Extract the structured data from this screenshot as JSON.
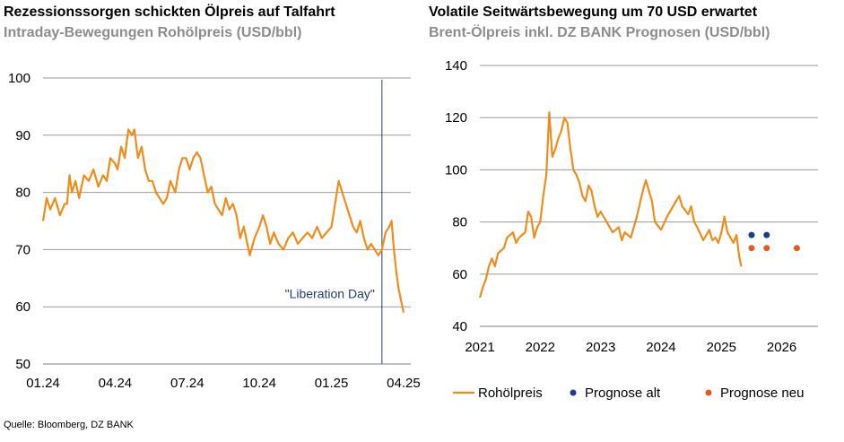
{
  "left_panel": {
    "title": "Rezessionssorgen schickten Ölpreis auf Talfahrt",
    "subtitle": "Intraday-Bewegungen Rohölpreis (USD/bbl)"
  },
  "right_panel": {
    "title": "Volatile Seitwärtsbewegung um 70 USD erwartet",
    "subtitle": "Brent-Ölpreis inkl. DZ BANK Prognosen (USD/bbl)"
  },
  "source": "Quelle: Bloomberg, DZ BANK",
  "colors": {
    "oil": "#ee8d1a",
    "alt": "#1f3c88",
    "neu": "#e05a2b",
    "grid": "#999999",
    "marker_line": "#1f3d7a"
  },
  "chart_data": [
    {
      "type": "line",
      "title": "Rezessionssorgen schickten Ölpreis auf Talfahrt",
      "subtitle": "Intraday-Bewegungen Rohölpreis (USD/bbl)",
      "ylim": [
        50,
        100
      ],
      "yticks": [
        50,
        60,
        70,
        80,
        90,
        100
      ],
      "xlim": [
        0,
        15.3
      ],
      "xticks": [
        {
          "x": 0,
          "label": "01.24"
        },
        {
          "x": 3,
          "label": "04.24"
        },
        {
          "x": 6,
          "label": "07.24"
        },
        {
          "x": 9,
          "label": "10.24"
        },
        {
          "x": 12,
          "label": "01.25"
        },
        {
          "x": 15,
          "label": "04.25"
        }
      ],
      "grid": true,
      "annotation": {
        "label": "\"Liberation Day\"",
        "x": 14.1
      },
      "series": [
        {
          "points": [
            [
              0.0,
              75
            ],
            [
              0.15,
              79
            ],
            [
              0.3,
              77
            ],
            [
              0.5,
              79
            ],
            [
              0.7,
              76
            ],
            [
              0.9,
              78
            ],
            [
              1.0,
              78
            ],
            [
              1.1,
              83
            ],
            [
              1.2,
              80
            ],
            [
              1.35,
              82
            ],
            [
              1.5,
              79
            ],
            [
              1.7,
              83
            ],
            [
              1.9,
              82
            ],
            [
              2.1,
              84
            ],
            [
              2.3,
              81
            ],
            [
              2.5,
              83
            ],
            [
              2.65,
              82
            ],
            [
              2.8,
              86
            ],
            [
              3.0,
              85
            ],
            [
              3.1,
              84
            ],
            [
              3.25,
              88
            ],
            [
              3.4,
              86
            ],
            [
              3.55,
              91
            ],
            [
              3.7,
              90
            ],
            [
              3.8,
              91
            ],
            [
              3.95,
              86
            ],
            [
              4.1,
              88
            ],
            [
              4.25,
              84
            ],
            [
              4.4,
              82
            ],
            [
              4.55,
              82
            ],
            [
              4.7,
              80
            ],
            [
              4.85,
              79
            ],
            [
              5.0,
              78
            ],
            [
              5.15,
              79
            ],
            [
              5.3,
              82
            ],
            [
              5.5,
              80
            ],
            [
              5.65,
              84
            ],
            [
              5.8,
              86
            ],
            [
              5.95,
              86
            ],
            [
              6.1,
              84
            ],
            [
              6.25,
              86
            ],
            [
              6.4,
              87
            ],
            [
              6.55,
              86
            ],
            [
              6.7,
              83
            ],
            [
              6.85,
              80
            ],
            [
              7.0,
              81
            ],
            [
              7.15,
              78
            ],
            [
              7.3,
              77
            ],
            [
              7.45,
              76
            ],
            [
              7.6,
              79
            ],
            [
              7.75,
              77
            ],
            [
              7.9,
              78
            ],
            [
              8.05,
              76
            ],
            [
              8.2,
              72
            ],
            [
              8.35,
              74
            ],
            [
              8.5,
              71
            ],
            [
              8.6,
              69
            ],
            [
              8.8,
              72
            ],
            [
              9.0,
              74
            ],
            [
              9.15,
              76
            ],
            [
              9.3,
              74
            ],
            [
              9.45,
              71
            ],
            [
              9.6,
              73
            ],
            [
              9.8,
              71
            ],
            [
              10.0,
              70
            ],
            [
              10.2,
              72
            ],
            [
              10.4,
              73
            ],
            [
              10.6,
              71
            ],
            [
              10.8,
              72
            ],
            [
              11.0,
              73
            ],
            [
              11.2,
              72
            ],
            [
              11.4,
              74
            ],
            [
              11.6,
              72
            ],
            [
              11.8,
              73
            ],
            [
              12.0,
              74
            ],
            [
              12.15,
              78
            ],
            [
              12.3,
              82
            ],
            [
              12.45,
              80
            ],
            [
              12.6,
              78
            ],
            [
              12.75,
              76
            ],
            [
              12.9,
              74
            ],
            [
              13.05,
              73
            ],
            [
              13.2,
              75
            ],
            [
              13.35,
              72
            ],
            [
              13.5,
              70
            ],
            [
              13.65,
              71
            ],
            [
              13.8,
              70
            ],
            [
              13.95,
              69
            ],
            [
              14.1,
              70
            ],
            [
              14.25,
              73
            ],
            [
              14.4,
              74
            ],
            [
              14.5,
              75
            ],
            [
              14.6,
              70
            ],
            [
              14.7,
              66
            ],
            [
              14.8,
              63
            ],
            [
              14.9,
              61
            ],
            [
              15.0,
              59
            ]
          ]
        }
      ]
    },
    {
      "type": "line",
      "title": "Volatile Seitwärtsbewegung um 70 USD erwartet",
      "subtitle": "Brent-Ölpreis inkl. DZ BANK Prognosen (USD/bbl)",
      "ylim": [
        40,
        140
      ],
      "yticks": [
        40,
        60,
        80,
        100,
        120,
        140
      ],
      "xlim": [
        2021,
        2026.6
      ],
      "xticks": [
        {
          "x": 2021,
          "label": "2021"
        },
        {
          "x": 2022,
          "label": "2022"
        },
        {
          "x": 2023,
          "label": "2023"
        },
        {
          "x": 2024,
          "label": "2024"
        },
        {
          "x": 2025,
          "label": "2025"
        },
        {
          "x": 2026,
          "label": "2026"
        }
      ],
      "grid": true,
      "legend_position": "bottom",
      "series": [
        {
          "name": "Rohölpreis",
          "style": "line",
          "points": [
            [
              2021.0,
              51
            ],
            [
              2021.05,
              55
            ],
            [
              2021.1,
              58
            ],
            [
              2021.15,
              63
            ],
            [
              2021.2,
              66
            ],
            [
              2021.25,
              63
            ],
            [
              2021.3,
              68
            ],
            [
              2021.4,
              70
            ],
            [
              2021.45,
              74
            ],
            [
              2021.55,
              76
            ],
            [
              2021.6,
              72
            ],
            [
              2021.65,
              74
            ],
            [
              2021.75,
              76
            ],
            [
              2021.8,
              84
            ],
            [
              2021.85,
              82
            ],
            [
              2021.9,
              74
            ],
            [
              2021.95,
              78
            ],
            [
              2022.0,
              80
            ],
            [
              2022.05,
              90
            ],
            [
              2022.1,
              98
            ],
            [
              2022.15,
              122
            ],
            [
              2022.2,
              105
            ],
            [
              2022.25,
              108
            ],
            [
              2022.3,
              112
            ],
            [
              2022.35,
              115
            ],
            [
              2022.4,
              120
            ],
            [
              2022.45,
              118
            ],
            [
              2022.5,
              108
            ],
            [
              2022.55,
              100
            ],
            [
              2022.6,
              98
            ],
            [
              2022.65,
              95
            ],
            [
              2022.7,
              90
            ],
            [
              2022.75,
              88
            ],
            [
              2022.8,
              94
            ],
            [
              2022.85,
              92
            ],
            [
              2022.9,
              86
            ],
            [
              2022.95,
              82
            ],
            [
              2023.0,
              84
            ],
            [
              2023.1,
              80
            ],
            [
              2023.2,
              76
            ],
            [
              2023.3,
              78
            ],
            [
              2023.35,
              73
            ],
            [
              2023.4,
              76
            ],
            [
              2023.5,
              74
            ],
            [
              2023.6,
              82
            ],
            [
              2023.7,
              92
            ],
            [
              2023.75,
              96
            ],
            [
              2023.8,
              92
            ],
            [
              2023.85,
              88
            ],
            [
              2023.9,
              80
            ],
            [
              2024.0,
              77
            ],
            [
              2024.1,
              82
            ],
            [
              2024.2,
              86
            ],
            [
              2024.3,
              90
            ],
            [
              2024.35,
              86
            ],
            [
              2024.45,
              83
            ],
            [
              2024.5,
              86
            ],
            [
              2024.55,
              80
            ],
            [
              2024.6,
              78
            ],
            [
              2024.7,
              73
            ],
            [
              2024.8,
              77
            ],
            [
              2024.85,
              73
            ],
            [
              2024.9,
              74
            ],
            [
              2024.95,
              72
            ],
            [
              2025.0,
              76
            ],
            [
              2025.05,
              82
            ],
            [
              2025.1,
              76
            ],
            [
              2025.2,
              72
            ],
            [
              2025.25,
              75
            ],
            [
              2025.3,
              66
            ],
            [
              2025.33,
              63
            ]
          ]
        },
        {
          "name": "Prognose alt",
          "style": "dot",
          "points": [
            [
              2025.5,
              75
            ],
            [
              2025.75,
              75
            ]
          ]
        },
        {
          "name": "Prognose neu",
          "style": "dot",
          "points": [
            [
              2025.5,
              70
            ],
            [
              2025.75,
              70
            ],
            [
              2026.25,
              70
            ]
          ]
        }
      ]
    }
  ]
}
